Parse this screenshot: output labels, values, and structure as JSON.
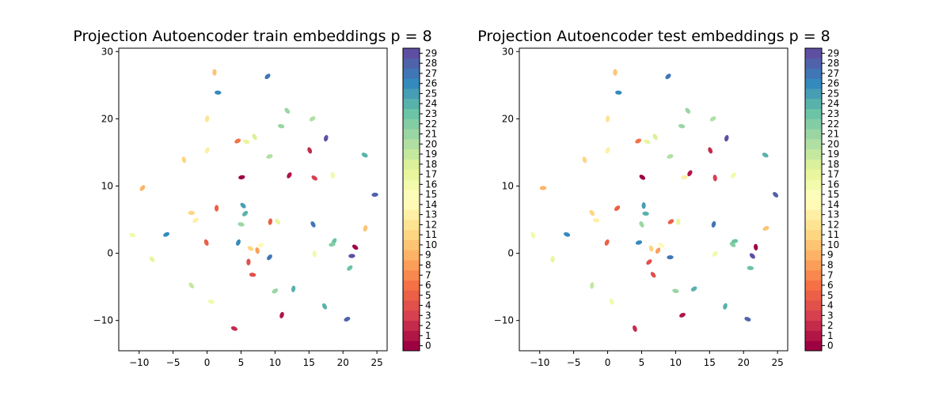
{
  "chart_data": [
    {
      "type": "scatter",
      "title": "Projection Autoencoder train embeddings p = 8",
      "xlabel": "",
      "ylabel": "",
      "xlim": [
        -13.0,
        26.5
      ],
      "ylim": [
        -14.5,
        30.5
      ],
      "xticks": [
        -10,
        -5,
        0,
        5,
        10,
        15,
        20,
        25
      ],
      "yticks": [
        -10,
        0,
        10,
        20,
        30
      ],
      "grid": false,
      "colormap": "Spectral",
      "colorbar": {
        "min": 0,
        "max": 29,
        "ticks": [
          0,
          1,
          2,
          3,
          4,
          5,
          6,
          7,
          8,
          9,
          10,
          11,
          12,
          13,
          14,
          15,
          16,
          17,
          18,
          19,
          20,
          21,
          22,
          23,
          24,
          25,
          26,
          27,
          28,
          29
        ]
      },
      "clusters": [
        {
          "x": 1.1,
          "y": 26.9,
          "c": 10
        },
        {
          "x": 8.9,
          "y": 26.3,
          "c": 27
        },
        {
          "x": 1.6,
          "y": 23.9,
          "c": 26
        },
        {
          "x": 11.8,
          "y": 21.2,
          "c": 21
        },
        {
          "x": 0.0,
          "y": 20.0,
          "c": 12
        },
        {
          "x": 15.5,
          "y": 20.0,
          "c": 20
        },
        {
          "x": 10.9,
          "y": 18.9,
          "c": 21
        },
        {
          "x": 7.0,
          "y": 17.3,
          "c": 18
        },
        {
          "x": 17.5,
          "y": 17.1,
          "c": 29
        },
        {
          "x": 4.5,
          "y": 16.7,
          "c": 6
        },
        {
          "x": 5.8,
          "y": 16.6,
          "c": 17
        },
        {
          "x": 15.1,
          "y": 15.3,
          "c": 2
        },
        {
          "x": 0.0,
          "y": 15.3,
          "c": 13
        },
        {
          "x": 9.2,
          "y": 14.4,
          "c": 20
        },
        {
          "x": 23.2,
          "y": 14.6,
          "c": 24
        },
        {
          "x": -3.4,
          "y": 13.9,
          "c": 11
        },
        {
          "x": 12.1,
          "y": 11.6,
          "c": 1
        },
        {
          "x": 5.1,
          "y": 11.3,
          "c": 0
        },
        {
          "x": 15.8,
          "y": 11.2,
          "c": 3
        },
        {
          "x": 18.5,
          "y": 11.6,
          "c": 16
        },
        {
          "x": -9.5,
          "y": 9.7,
          "c": 9
        },
        {
          "x": 24.7,
          "y": 8.7,
          "c": 28
        },
        {
          "x": 5.3,
          "y": 7.1,
          "c": 25
        },
        {
          "x": 1.4,
          "y": 6.7,
          "c": 5
        },
        {
          "x": 5.6,
          "y": 5.9,
          "c": 24
        },
        {
          "x": -2.3,
          "y": 6.0,
          "c": 11
        },
        {
          "x": 10.4,
          "y": 4.7,
          "c": 17
        },
        {
          "x": 9.3,
          "y": 4.7,
          "c": 5
        },
        {
          "x": -1.7,
          "y": 4.9,
          "c": 13
        },
        {
          "x": 5.0,
          "y": 4.3,
          "c": 21
        },
        {
          "x": 15.6,
          "y": 4.3,
          "c": 27
        },
        {
          "x": 23.3,
          "y": 3.7,
          "c": 10
        },
        {
          "x": -6.0,
          "y": 2.8,
          "c": 26
        },
        {
          "x": -11.0,
          "y": 2.7,
          "c": 16
        },
        {
          "x": -0.1,
          "y": 1.6,
          "c": 5
        },
        {
          "x": 4.6,
          "y": 1.6,
          "c": 26
        },
        {
          "x": 7.9,
          "y": 1.2,
          "c": 14
        },
        {
          "x": 6.4,
          "y": 0.7,
          "c": 11
        },
        {
          "x": 7.4,
          "y": 0.4,
          "c": 8
        },
        {
          "x": 18.7,
          "y": 1.8,
          "c": 23
        },
        {
          "x": 18.4,
          "y": 1.3,
          "c": 22
        },
        {
          "x": 21.8,
          "y": 0.9,
          "c": 0
        },
        {
          "x": 15.8,
          "y": -0.1,
          "c": 16
        },
        {
          "x": 9.2,
          "y": -0.6,
          "c": 27
        },
        {
          "x": 21.3,
          "y": -0.4,
          "c": 29
        },
        {
          "x": -8.1,
          "y": -0.9,
          "c": 17
        },
        {
          "x": 6.1,
          "y": -1.3,
          "c": 4
        },
        {
          "x": 21.0,
          "y": -2.2,
          "c": 23
        },
        {
          "x": 6.7,
          "y": -3.2,
          "c": 4
        },
        {
          "x": -2.3,
          "y": -4.8,
          "c": 19
        },
        {
          "x": 12.7,
          "y": -5.3,
          "c": 24
        },
        {
          "x": 10.0,
          "y": -5.6,
          "c": 21
        },
        {
          "x": 0.6,
          "y": -7.2,
          "c": 16
        },
        {
          "x": 17.3,
          "y": -7.9,
          "c": 24
        },
        {
          "x": 11.0,
          "y": -9.2,
          "c": 1
        },
        {
          "x": 20.6,
          "y": -9.8,
          "c": 28
        },
        {
          "x": 4.0,
          "y": -11.2,
          "c": 2
        }
      ]
    },
    {
      "type": "scatter",
      "title": "Projection Autoencoder test embeddings p = 8",
      "xlabel": "",
      "ylabel": "",
      "xlim": [
        -13.0,
        26.5
      ],
      "ylim": [
        -14.5,
        30.5
      ],
      "xticks": [
        -10,
        -5,
        0,
        5,
        10,
        15,
        20,
        25
      ],
      "yticks": [
        -10,
        0,
        10,
        20,
        30
      ],
      "grid": false,
      "colormap": "Spectral",
      "colorbar": {
        "min": 0,
        "max": 29,
        "ticks": [
          0,
          1,
          2,
          3,
          4,
          5,
          6,
          7,
          8,
          9,
          10,
          11,
          12,
          13,
          14,
          15,
          16,
          17,
          18,
          19,
          20,
          21,
          22,
          23,
          24,
          25,
          26,
          27,
          28,
          29
        ]
      },
      "clusters": [
        {
          "x": 1.1,
          "y": 26.9,
          "c": 10
        },
        {
          "x": 8.9,
          "y": 26.3,
          "c": 27
        },
        {
          "x": 1.6,
          "y": 23.9,
          "c": 26
        },
        {
          "x": 11.8,
          "y": 21.2,
          "c": 21
        },
        {
          "x": 0.0,
          "y": 20.0,
          "c": 12
        },
        {
          "x": 15.5,
          "y": 20.0,
          "c": 20
        },
        {
          "x": 10.9,
          "y": 18.9,
          "c": 21
        },
        {
          "x": 7.0,
          "y": 17.3,
          "c": 18
        },
        {
          "x": 17.5,
          "y": 17.1,
          "c": 29
        },
        {
          "x": 4.5,
          "y": 16.7,
          "c": 6
        },
        {
          "x": 5.8,
          "y": 16.6,
          "c": 17
        },
        {
          "x": 15.1,
          "y": 15.3,
          "c": 2
        },
        {
          "x": 0.0,
          "y": 15.3,
          "c": 13
        },
        {
          "x": 9.2,
          "y": 14.4,
          "c": 20
        },
        {
          "x": 23.2,
          "y": 14.6,
          "c": 24
        },
        {
          "x": -3.4,
          "y": 13.9,
          "c": 11
        },
        {
          "x": 12.1,
          "y": 11.9,
          "c": 1
        },
        {
          "x": 11.3,
          "y": 11.3,
          "c": 13
        },
        {
          "x": 5.1,
          "y": 11.3,
          "c": 0
        },
        {
          "x": 15.8,
          "y": 11.2,
          "c": 3
        },
        {
          "x": 18.5,
          "y": 11.6,
          "c": 16
        },
        {
          "x": -9.5,
          "y": 9.7,
          "c": 9
        },
        {
          "x": 24.7,
          "y": 8.7,
          "c": 28
        },
        {
          "x": 5.3,
          "y": 7.1,
          "c": 25
        },
        {
          "x": 1.4,
          "y": 6.7,
          "c": 5
        },
        {
          "x": 5.6,
          "y": 5.9,
          "c": 24
        },
        {
          "x": -2.3,
          "y": 6.0,
          "c": 11
        },
        {
          "x": 10.4,
          "y": 4.7,
          "c": 17
        },
        {
          "x": 9.3,
          "y": 4.7,
          "c": 5
        },
        {
          "x": -1.7,
          "y": 4.9,
          "c": 13
        },
        {
          "x": 5.0,
          "y": 4.3,
          "c": 21
        },
        {
          "x": 15.6,
          "y": 4.3,
          "c": 27
        },
        {
          "x": 23.3,
          "y": 3.7,
          "c": 10
        },
        {
          "x": -6.0,
          "y": 2.8,
          "c": 26
        },
        {
          "x": -11.0,
          "y": 2.7,
          "c": 16
        },
        {
          "x": -0.1,
          "y": 1.6,
          "c": 5
        },
        {
          "x": 4.6,
          "y": 1.6,
          "c": 26
        },
        {
          "x": 7.9,
          "y": 1.2,
          "c": 14
        },
        {
          "x": 6.4,
          "y": 0.7,
          "c": 11
        },
        {
          "x": 7.4,
          "y": 0.4,
          "c": 8
        },
        {
          "x": 18.7,
          "y": 1.8,
          "c": 23
        },
        {
          "x": 18.4,
          "y": 1.3,
          "c": 22
        },
        {
          "x": 21.8,
          "y": 0.9,
          "c": 0
        },
        {
          "x": 15.8,
          "y": -0.1,
          "c": 16
        },
        {
          "x": 9.2,
          "y": -0.6,
          "c": 27
        },
        {
          "x": 21.3,
          "y": -0.4,
          "c": 29
        },
        {
          "x": -8.1,
          "y": -0.9,
          "c": 17
        },
        {
          "x": 6.1,
          "y": -1.3,
          "c": 4
        },
        {
          "x": 21.0,
          "y": -2.2,
          "c": 23
        },
        {
          "x": 6.7,
          "y": -3.2,
          "c": 4
        },
        {
          "x": -2.3,
          "y": -4.8,
          "c": 19
        },
        {
          "x": 12.7,
          "y": -5.3,
          "c": 24
        },
        {
          "x": 10.0,
          "y": -5.6,
          "c": 21
        },
        {
          "x": 0.6,
          "y": -7.2,
          "c": 16
        },
        {
          "x": 17.3,
          "y": -7.9,
          "c": 24
        },
        {
          "x": 11.0,
          "y": -9.2,
          "c": 1
        },
        {
          "x": 20.6,
          "y": -9.8,
          "c": 28
        },
        {
          "x": 4.0,
          "y": -11.2,
          "c": 2
        }
      ]
    }
  ]
}
